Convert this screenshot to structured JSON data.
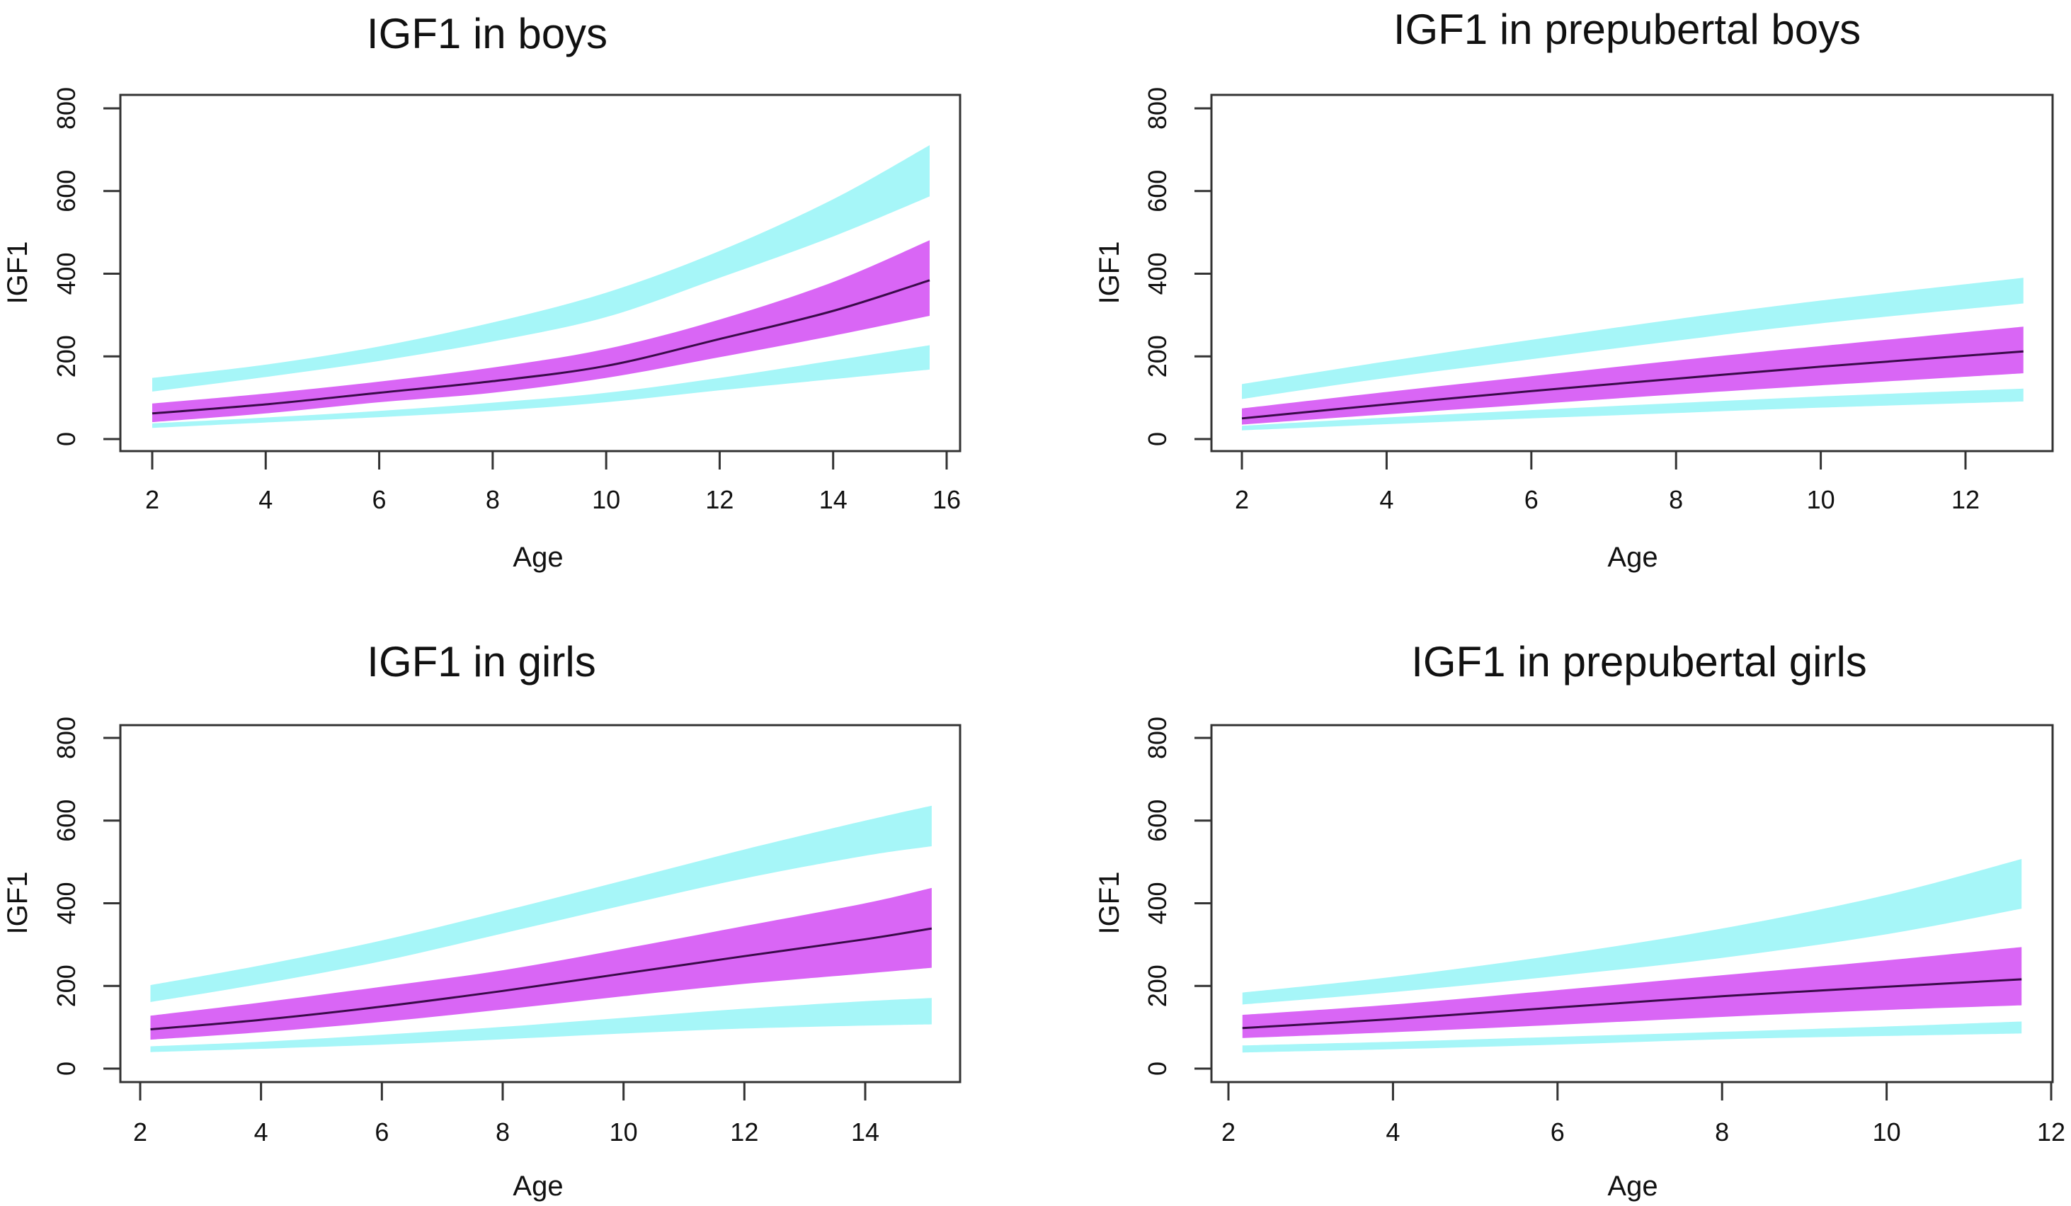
{
  "colors": {
    "outer_band": "#a6f6f8",
    "inner_band": "#d966f5",
    "median_line": "#3a0a4a",
    "axis": "#333333"
  },
  "chart_data": [
    {
      "type": "area",
      "title": "IGF1 in boys",
      "xlabel": "Age",
      "ylabel": "IGF1",
      "xlim": [
        2,
        16
      ],
      "ylim": [
        0,
        800
      ],
      "xticks": [
        2,
        4,
        6,
        8,
        10,
        12,
        14,
        16
      ],
      "yticks": [
        0,
        200,
        400,
        600,
        800
      ],
      "x": [
        2,
        4,
        6,
        8,
        10,
        12,
        14,
        15.7
      ],
      "series": [
        {
          "name": "upper outer band high",
          "values": [
            148,
            180,
            224,
            282,
            354,
            455,
            580,
            711
          ]
        },
        {
          "name": "upper outer band low",
          "values": [
            115,
            150,
            189,
            236,
            295,
            390,
            490,
            587
          ]
        },
        {
          "name": "inner band high",
          "values": [
            86,
            110,
            139,
            173,
            218,
            289,
            380,
            481
          ]
        },
        {
          "name": "median",
          "values": [
            62,
            84,
            112,
            140,
            177,
            242,
            310,
            384
          ]
        },
        {
          "name": "inner band low",
          "values": [
            41,
            62,
            89,
            112,
            148,
            198,
            250,
            298
          ]
        },
        {
          "name": "lower outer band high",
          "values": [
            38,
            52,
            68,
            88,
            112,
            148,
            190,
            227
          ]
        },
        {
          "name": "lower outer band low",
          "values": [
            27,
            40,
            53,
            68,
            89,
            118,
            145,
            168
          ]
        }
      ]
    },
    {
      "type": "area",
      "title": "IGF1 in prepubertal boys",
      "xlabel": "Age",
      "ylabel": "IGF1",
      "xlim": [
        2,
        12.8
      ],
      "ylim": [
        0,
        800
      ],
      "xticks": [
        2,
        4,
        6,
        8,
        10,
        12
      ],
      "yticks": [
        0,
        200,
        400,
        600,
        800
      ],
      "x": [
        2,
        4,
        6,
        8,
        10,
        12.8
      ],
      "series": [
        {
          "name": "upper outer band high",
          "values": [
            133,
            188,
            240,
            290,
            335,
            390
          ]
        },
        {
          "name": "upper outer band low",
          "values": [
            97,
            148,
            193,
            238,
            280,
            328
          ]
        },
        {
          "name": "inner band high",
          "values": [
            74,
            114,
            152,
            190,
            225,
            272
          ]
        },
        {
          "name": "median",
          "values": [
            50,
            84,
            116,
            146,
            175,
            212
          ]
        },
        {
          "name": "inner band low",
          "values": [
            35,
            60,
            84,
            108,
            130,
            159
          ]
        },
        {
          "name": "lower outer band high",
          "values": [
            32,
            52,
            70,
            87,
            103,
            122
          ]
        },
        {
          "name": "lower outer band low",
          "values": [
            21,
            36,
            50,
            63,
            76,
            91
          ]
        }
      ]
    },
    {
      "type": "area",
      "title": "IGF1 in girls",
      "xlabel": "Age",
      "ylabel": "IGF1",
      "xlim": [
        2,
        15.1
      ],
      "ylim": [
        0,
        800
      ],
      "xticks": [
        2,
        4,
        6,
        8,
        10,
        12,
        14
      ],
      "yticks": [
        0,
        200,
        400,
        600,
        800
      ],
      "x": [
        2.17,
        4,
        6,
        8,
        10,
        12,
        14,
        15.1
      ],
      "series": [
        {
          "name": "upper outer band high",
          "values": [
            202,
            250,
            310,
            381,
            455,
            530,
            600,
            636
          ]
        },
        {
          "name": "upper outer band low",
          "values": [
            161,
            205,
            260,
            327,
            395,
            460,
            515,
            538
          ]
        },
        {
          "name": "inner band high",
          "values": [
            128,
            160,
            198,
            238,
            290,
            345,
            400,
            437
          ]
        },
        {
          "name": "median",
          "values": [
            95,
            118,
            150,
            188,
            230,
            272,
            313,
            339
          ]
        },
        {
          "name": "inner band low",
          "values": [
            70,
            88,
            113,
            143,
            175,
            205,
            230,
            244
          ]
        },
        {
          "name": "lower outer band high",
          "values": [
            54,
            65,
            82,
            101,
            123,
            145,
            163,
            171
          ]
        },
        {
          "name": "lower outer band low",
          "values": [
            40,
            48,
            58,
            71,
            85,
            97,
            104,
            107
          ]
        }
      ]
    },
    {
      "type": "area",
      "title": "IGF1 in prepubertal girls",
      "xlabel": "Age",
      "ylabel": "IGF1",
      "xlim": [
        2,
        12
      ],
      "ylim": [
        0,
        800
      ],
      "xticks": [
        2,
        4,
        6,
        8,
        10,
        12
      ],
      "yticks": [
        0,
        200,
        400,
        600,
        800
      ],
      "x": [
        2.17,
        4,
        6,
        8,
        10,
        11.64
      ],
      "series": [
        {
          "name": "upper outer band high",
          "values": [
            184,
            222,
            275,
            339,
            420,
            507
          ]
        },
        {
          "name": "upper outer band low",
          "values": [
            155,
            185,
            224,
            268,
            325,
            387
          ]
        },
        {
          "name": "inner band high",
          "values": [
            130,
            155,
            190,
            226,
            262,
            294
          ]
        },
        {
          "name": "median",
          "values": [
            98,
            120,
            148,
            175,
            198,
            216
          ]
        },
        {
          "name": "inner band low",
          "values": [
            74,
            88,
            106,
            125,
            142,
            153
          ]
        },
        {
          "name": "lower outer band high",
          "values": [
            56,
            65,
            77,
            89,
            102,
            114
          ]
        },
        {
          "name": "lower outer band low",
          "values": [
            39,
            47,
            58,
            71,
            79,
            85
          ]
        }
      ]
    }
  ]
}
